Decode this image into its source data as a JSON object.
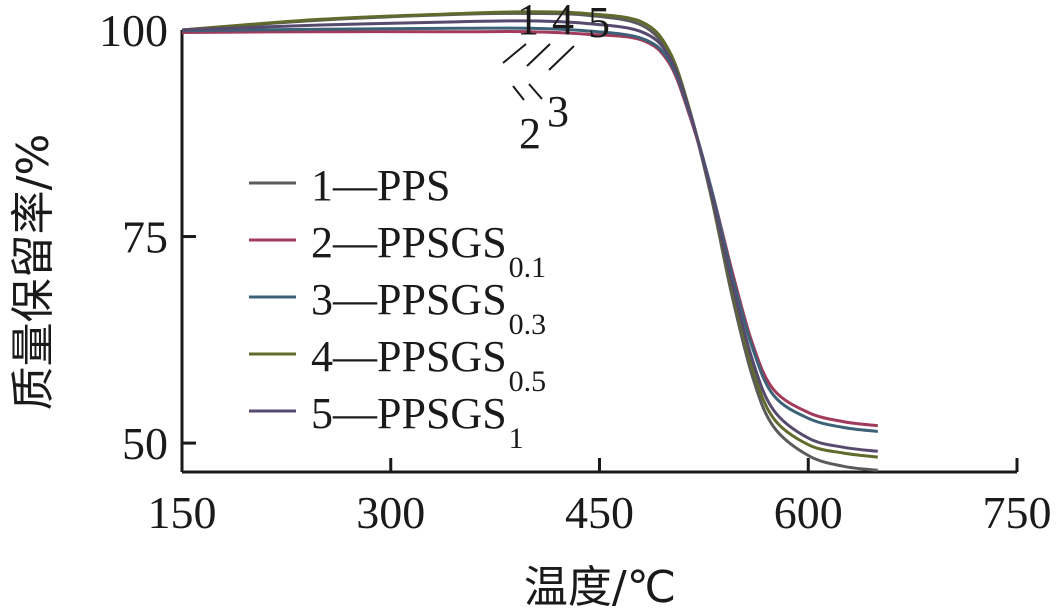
{
  "chart_data": {
    "type": "line",
    "xlabel": "温度/℃",
    "ylabel": "质量保留率/%",
    "xlim": [
      150,
      750
    ],
    "ylim": [
      46.5,
      100
    ],
    "x_ticks": [
      "150",
      "300",
      "450",
      "600",
      "750"
    ],
    "y_ticks": [
      "50",
      "75",
      "100"
    ],
    "grid": false,
    "legend_position": "left-middle",
    "callouts": [
      "1",
      "4",
      "5",
      "2",
      "3"
    ],
    "series": [
      {
        "key": "1",
        "name": "1—PPS",
        "label_prefix": "1—PPS",
        "label_sub": "",
        "color": "#5b5b5b",
        "points": [
          [
            150,
            100
          ],
          [
            250,
            101.2
          ],
          [
            350,
            101.9
          ],
          [
            400,
            102
          ],
          [
            440,
            101.8
          ],
          [
            480,
            100.6
          ],
          [
            500,
            97
          ],
          [
            515,
            90
          ],
          [
            530,
            80
          ],
          [
            545,
            68
          ],
          [
            560,
            58
          ],
          [
            575,
            52
          ],
          [
            600,
            48.5
          ],
          [
            625,
            47.2
          ],
          [
            650,
            46.7
          ]
        ]
      },
      {
        "key": "2",
        "name": "2—PPSGS0.1",
        "label_prefix": "2—PPSGS",
        "label_sub": "0.1",
        "color": "#a23a5a",
        "points": [
          [
            150,
            99.7
          ],
          [
            250,
            99.8
          ],
          [
            350,
            99.8
          ],
          [
            400,
            99.8
          ],
          [
            440,
            99.5
          ],
          [
            480,
            98.8
          ],
          [
            500,
            96
          ],
          [
            515,
            89.5
          ],
          [
            530,
            81
          ],
          [
            545,
            71
          ],
          [
            560,
            62
          ],
          [
            575,
            56.5
          ],
          [
            600,
            53.7
          ],
          [
            625,
            52.6
          ],
          [
            650,
            52.1
          ]
        ]
      },
      {
        "key": "3",
        "name": "3—PPSGS0.3",
        "label_prefix": "3—PPSGS",
        "label_sub": "0.3",
        "color": "#3d6278",
        "points": [
          [
            150,
            99.9
          ],
          [
            250,
            100.1
          ],
          [
            350,
            100.2
          ],
          [
            400,
            100.2
          ],
          [
            440,
            99.9
          ],
          [
            480,
            99
          ],
          [
            500,
            96.3
          ],
          [
            515,
            89.8
          ],
          [
            530,
            81
          ],
          [
            545,
            70.5
          ],
          [
            560,
            61.5
          ],
          [
            575,
            55.8
          ],
          [
            600,
            53
          ],
          [
            625,
            51.9
          ],
          [
            650,
            51.4
          ]
        ]
      },
      {
        "key": "4",
        "name": "4—PPSGS0.5",
        "label_prefix": "4—PPSGS",
        "label_sub": "0.5",
        "color": "#5f6a2c",
        "points": [
          [
            150,
            100
          ],
          [
            250,
            101.3
          ],
          [
            350,
            102
          ],
          [
            400,
            102.2
          ],
          [
            440,
            102
          ],
          [
            480,
            101
          ],
          [
            500,
            97.5
          ],
          [
            515,
            90.2
          ],
          [
            530,
            80.2
          ],
          [
            545,
            68.8
          ],
          [
            560,
            59
          ],
          [
            575,
            53
          ],
          [
            600,
            49.8
          ],
          [
            625,
            48.8
          ],
          [
            650,
            48.3
          ]
        ]
      },
      {
        "key": "5",
        "name": "5—PPSGS1",
        "label_prefix": "5—PPSGS",
        "label_sub": "1",
        "color": "#564a6e",
        "points": [
          [
            150,
            100
          ],
          [
            250,
            100.6
          ],
          [
            350,
            101
          ],
          [
            400,
            101.1
          ],
          [
            440,
            100.8
          ],
          [
            480,
            99.8
          ],
          [
            500,
            96.8
          ],
          [
            515,
            90
          ],
          [
            530,
            80.5
          ],
          [
            545,
            69.5
          ],
          [
            560,
            60
          ],
          [
            575,
            54
          ],
          [
            600,
            50.6
          ],
          [
            625,
            49.5
          ],
          [
            650,
            49
          ]
        ]
      }
    ]
  }
}
